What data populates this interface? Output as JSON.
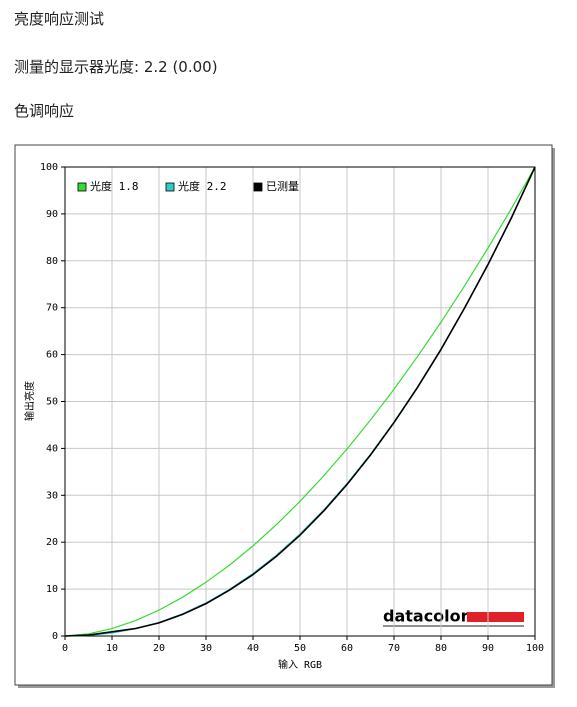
{
  "header": {
    "title": "亮度响应测试",
    "measured_gamma": "测量的显示器光度:  2.2 (0.00)",
    "section": "色调响应"
  },
  "chart_data": {
    "type": "line",
    "xlabel": "输入 RGB",
    "ylabel": "输出亮度",
    "logo": "datacolor",
    "x": [
      0,
      5,
      10,
      15,
      20,
      25,
      30,
      35,
      40,
      45,
      50,
      55,
      60,
      65,
      70,
      75,
      80,
      85,
      90,
      95,
      100
    ],
    "series": [
      {
        "name": "光度 1.8",
        "color": "#33dd33",
        "values": [
          0,
          0.46,
          1.58,
          3.29,
          5.52,
          8.25,
          11.45,
          15.11,
          19.22,
          23.76,
          28.72,
          34.09,
          39.87,
          46.05,
          52.62,
          59.58,
          66.92,
          74.64,
          82.73,
          91.18,
          100
        ]
      },
      {
        "name": "光度 2.2",
        "color": "#33cccc",
        "values": [
          0,
          0.14,
          0.63,
          1.54,
          2.9,
          4.74,
          7.07,
          9.93,
          13.32,
          17.26,
          21.76,
          26.84,
          32.5,
          38.76,
          45.63,
          53.11,
          61.21,
          69.94,
          79.31,
          89.33,
          100
        ]
      },
      {
        "name": "已测量",
        "color": "#000000",
        "values": [
          0,
          0.2,
          0.9,
          1.6,
          2.8,
          4.6,
          6.9,
          9.8,
          13.1,
          17.0,
          21.5,
          26.6,
          32.3,
          38.6,
          45.5,
          53.0,
          61.1,
          69.9,
          79.2,
          89.2,
          100
        ]
      }
    ],
    "xlim": [
      0,
      100
    ],
    "ylim": [
      0,
      100
    ],
    "xticks": [
      0,
      10,
      20,
      30,
      40,
      50,
      60,
      70,
      80,
      90,
      100
    ],
    "yticks": [
      0,
      10,
      20,
      30,
      40,
      50,
      60,
      70,
      80,
      90,
      100
    ],
    "grid": true,
    "legend": "top-left"
  }
}
